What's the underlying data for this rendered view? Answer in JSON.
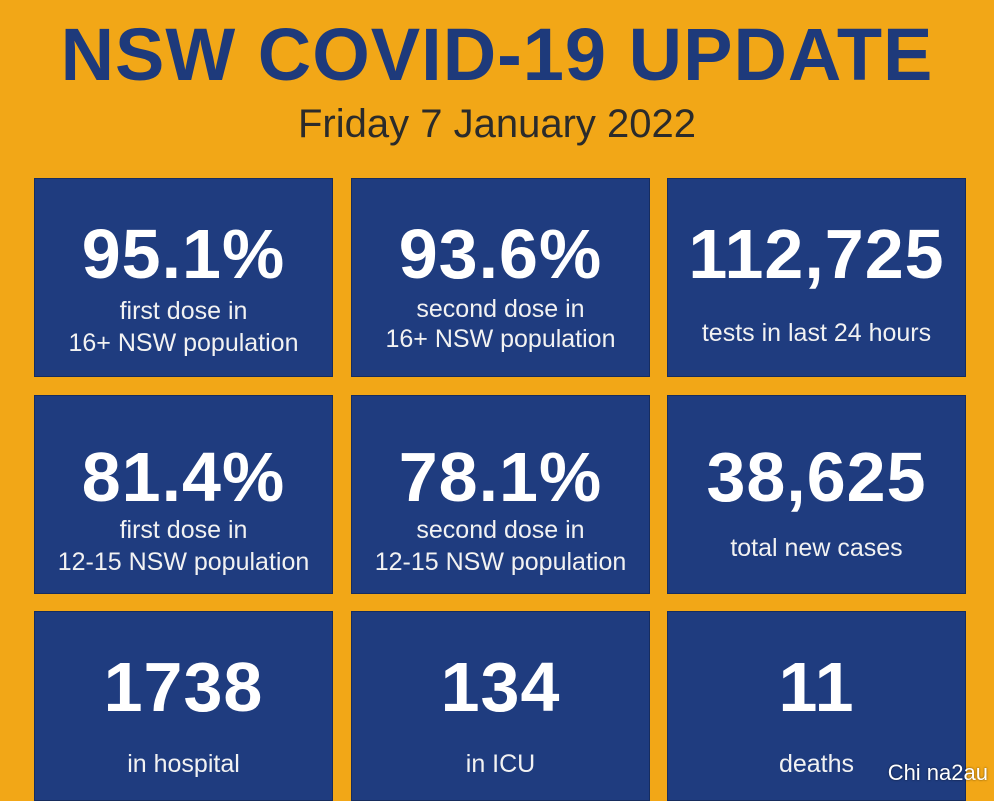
{
  "header": {
    "title": "NSW COVID-19 UPDATE",
    "date": "Friday 7 January 2022"
  },
  "tiles": [
    {
      "value": "95.1%",
      "label_lines": [
        "first dose in",
        "16+ NSW population"
      ]
    },
    {
      "value": "93.6%",
      "label_lines": [
        "second dose in",
        "16+ NSW population"
      ]
    },
    {
      "value": "112,725",
      "label_lines": [
        "tests in last 24 hours"
      ]
    },
    {
      "value": "81.4%",
      "label_lines": [
        "first dose in",
        "12-15 NSW population"
      ]
    },
    {
      "value": "78.1%",
      "label_lines": [
        "second dose in",
        "12-15 NSW population"
      ]
    },
    {
      "value": "38,625",
      "label_lines": [
        "total new cases"
      ]
    },
    {
      "value": "1738",
      "label_lines": [
        "in hospital"
      ]
    },
    {
      "value": "134",
      "label_lines": [
        "in ICU"
      ]
    },
    {
      "value": "11",
      "label_lines": [
        "deaths"
      ]
    }
  ],
  "watermark": "Chi na2au",
  "colors": {
    "background": "#F2A717",
    "tile": "#1F3C7F",
    "title": "#1E3A7B",
    "subtitle": "#2B2B2B",
    "tile_text": "#FFFFFF"
  }
}
